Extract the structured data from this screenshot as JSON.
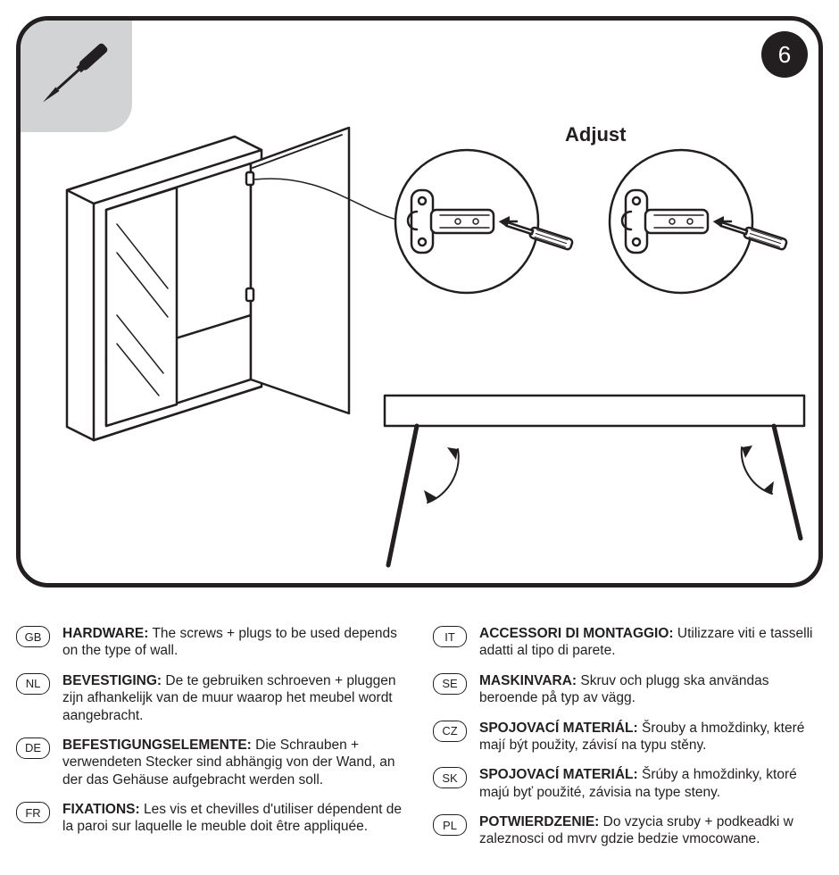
{
  "step_number": "6",
  "adjust_label": "Adjust",
  "colors": {
    "ink": "#231f20",
    "badge_bg": "#d1d3d4",
    "white": "#ffffff"
  },
  "notes_left": [
    {
      "code": "GB",
      "title": "HARDWARE:",
      "body": " The screws + plugs to be used depends on the type of wall."
    },
    {
      "code": "NL",
      "title": "BEVESTIGING:",
      "body": " De te gebruiken schroeven + pluggen zijn afhankelijk van de muur waarop het meubel wordt aangebracht."
    },
    {
      "code": "DE",
      "title": "BEFESTIGUNGSELEMENTE:",
      "body": " Die Schrauben + verwendeten Stecker sind abhängig von der Wand, an der das Gehäuse aufgebracht werden soll."
    },
    {
      "code": "FR",
      "title": "FIXATIONS:",
      "body": " Les vis et chevilles d'utiliser dépendent de la paroi sur laquelle le meuble doit être appliquée."
    }
  ],
  "notes_right": [
    {
      "code": "IT",
      "title": "ACCESSORI DI MONTAGGIO:",
      "body": " Utilizzare viti e tasselli adatti al tipo di parete."
    },
    {
      "code": "SE",
      "title": "MASKINVARA:",
      "body": " Skruv och plugg ska användas beroende på typ av vägg."
    },
    {
      "code": "CZ",
      "title": "SPOJOVACÍ MATERIÁL:",
      "body": " Šrouby a hmoždinky, které mají být použity, závisí na typu stěny."
    },
    {
      "code": "SK",
      "title": "SPOJOVACÍ MATERIÁL:",
      "body": " Šrúby a hmoždinky, ktoré majú byť použité, závisia na type steny."
    },
    {
      "code": "PL",
      "title": "POTWIERDZENIE:",
      "body": " Do vzycia sruby + podkeadki w zaleznosci od mvrv gdzie bedzie vmocowane."
    }
  ]
}
